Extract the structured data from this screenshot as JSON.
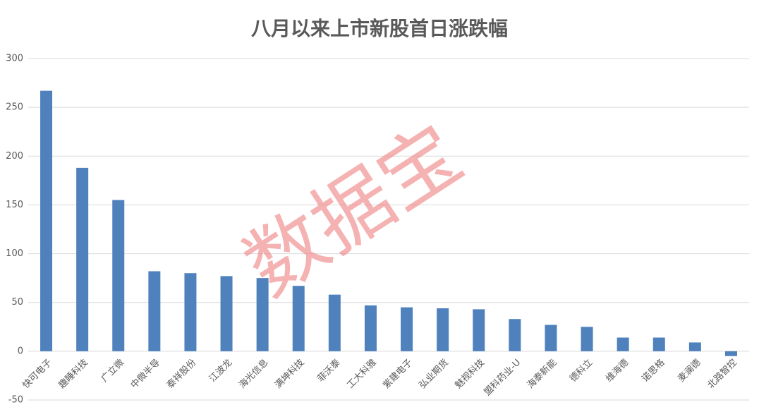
{
  "chart_data": {
    "type": "bar",
    "title": "八月以来上市新股首日涨跌幅",
    "watermark": "数据宝",
    "categories": [
      "快可电子",
      "趣睡科技",
      "广立微",
      "中微半导",
      "泰祥股份",
      "江波龙",
      "海光信息",
      "满坤科技",
      "菲沃泰",
      "工大科雅",
      "紫建电子",
      "弘业期货",
      "魅视科技",
      "盟科药业-U",
      "海泰新能",
      "德科立",
      "维海德",
      "诺思格",
      "麦澜德",
      "北路智控"
    ],
    "values": [
      267,
      188,
      155,
      82,
      80,
      77,
      75,
      67,
      58,
      47,
      45,
      44,
      43,
      33,
      27,
      25,
      14,
      14,
      9,
      -5
    ],
    "color": "#4f81bd",
    "ylim": [
      -50,
      300
    ],
    "yticks": [
      -50,
      0,
      50,
      100,
      150,
      200,
      250,
      300
    ],
    "grid": true
  }
}
